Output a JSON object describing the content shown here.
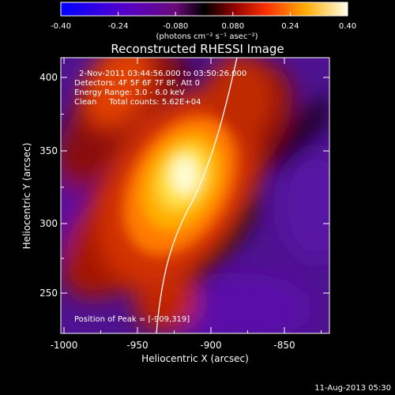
{
  "colorbar": {
    "ticks": [
      "-0.40",
      "-0.24",
      "-0.080",
      "0.080",
      "0.24",
      "0.40"
    ],
    "unit_label": "(photons cm⁻² s⁻¹ asec⁻²)"
  },
  "image": {
    "title": "Reconstructed RHESSI Image",
    "info_lines": [
      "2-Nov-2011 03:44:56.000 to 03:50:26.000",
      "Detectors: 4F 5F 6F 7F 8F, Att 0",
      "Energy Range: 3.0 - 6.0 keV",
      "Clean     Total counts: 5.62E+04"
    ],
    "peak_label": "Position of Peak = [-909,319]"
  },
  "axes": {
    "xlabel": "Heliocentric X (arcsec)",
    "ylabel": "Heliocentric Y (arcsec)",
    "xticks": [
      "-1000",
      "-950",
      "-900",
      "-850"
    ],
    "yticks": [
      "400",
      "350",
      "300",
      "250"
    ]
  },
  "footer": {
    "date": "11-Aug-2013 05:30"
  }
}
